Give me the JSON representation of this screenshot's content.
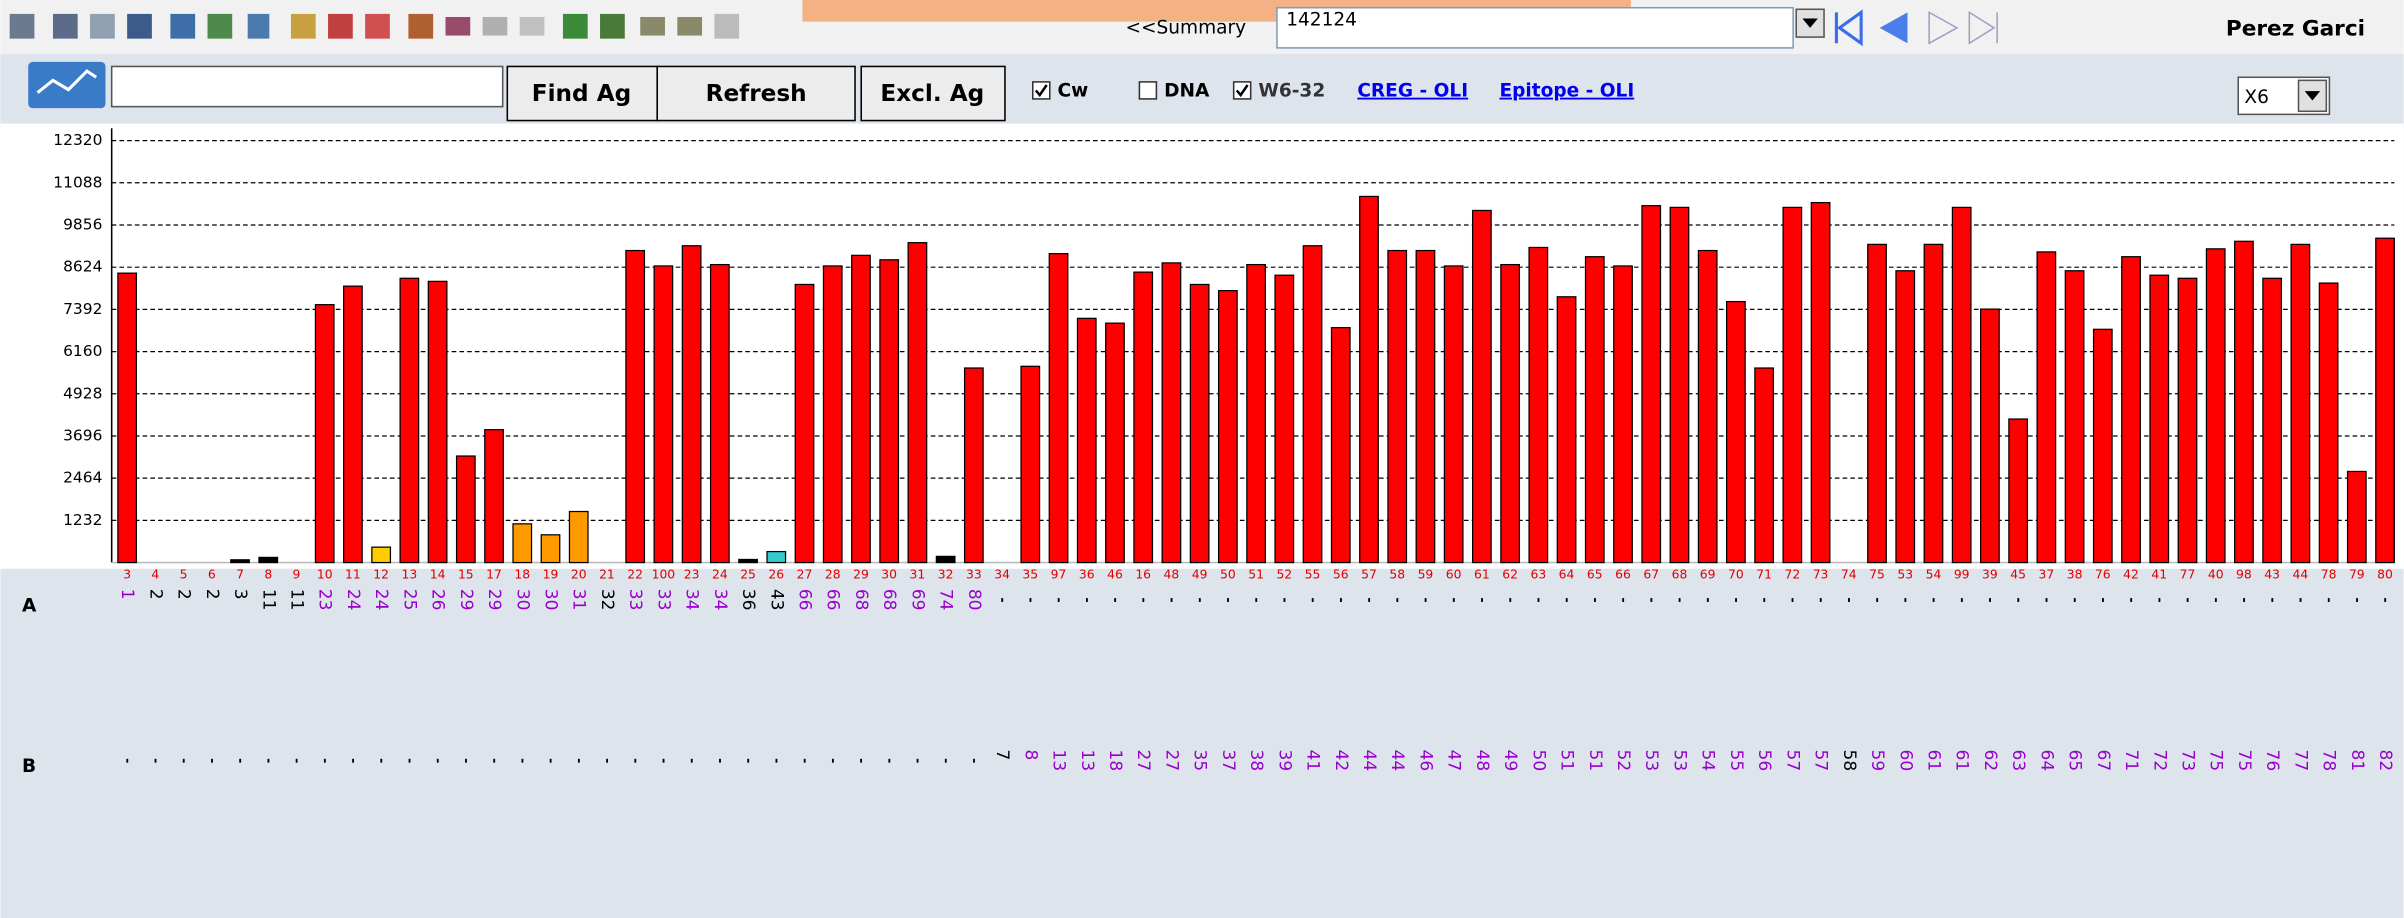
{
  "toolbar": {
    "summary_button": "<<Summary",
    "search_value": "142124",
    "patient_name": "Perez Garci",
    "find_button": "Find Ag",
    "refresh_button": "Refresh",
    "exclude_button": "Excl. Ag",
    "checkboxes": [
      {
        "label": "Cw",
        "checked": true
      },
      {
        "label": "DNA",
        "checked": false
      },
      {
        "label": "W6-32",
        "checked": true
      }
    ],
    "links": [
      "CREG - OLI",
      "Epitope - OLI"
    ],
    "zoom_select": "X6"
  },
  "chart_data": {
    "type": "bar",
    "categories": [
      "3",
      "4",
      "5",
      "6",
      "7",
      "8",
      "9",
      "10",
      "11",
      "12",
      "13",
      "14",
      "15",
      "17",
      "18",
      "19",
      "20",
      "21",
      "22",
      "100",
      "23",
      "24",
      "25",
      "26",
      "27",
      "28",
      "29",
      "30",
      "31",
      "32",
      "33",
      "34",
      "35",
      "97",
      "36",
      "46",
      "16",
      "48",
      "49",
      "50",
      "51",
      "52",
      "55",
      "56",
      "57",
      "58",
      "59",
      "60",
      "61",
      "62",
      "63",
      "64",
      "65",
      "66",
      "67",
      "68",
      "69",
      "70",
      "71",
      "72",
      "73",
      "74",
      "75",
      "53",
      "54",
      "99",
      "39",
      "45",
      "37",
      "38",
      "76",
      "42",
      "41",
      "77",
      "40",
      "98",
      "43",
      "44",
      "78",
      "79",
      "80"
    ],
    "values": [
      8450,
      0,
      0,
      0,
      80,
      150,
      0,
      7530,
      8070,
      450,
      8300,
      8210,
      3110,
      3880,
      1130,
      810,
      1490,
      0,
      9110,
      8660,
      9250,
      8700,
      90,
      320,
      8120,
      8660,
      8970,
      8840,
      9340,
      180,
      5680,
      0,
      5730,
      9020,
      7130,
      6990,
      8480,
      8750,
      8120,
      7940,
      8700,
      8390,
      9250,
      6860,
      10690,
      9110,
      9110,
      8660,
      10280,
      8700,
      9200,
      7760,
      8930,
      8660,
      10420,
      10370,
      9110,
      7620,
      5680,
      10370,
      10510,
      0,
      9290,
      8520,
      9290,
      10370,
      7400,
      4190,
      9070,
      8520,
      6810,
      8930,
      8390,
      8300,
      9160,
      9380,
      8300,
      9290,
      8160,
      2660,
      9470
    ],
    "colors": [
      "#f00",
      "#f00",
      "#f00",
      "#f00",
      "#000",
      "#000",
      "#f00",
      "#f00",
      "#f00",
      "#fc0",
      "#f00",
      "#f00",
      "#f00",
      "#f00",
      "#f90",
      "#f90",
      "#f90",
      "#f00",
      "#f00",
      "#f00",
      "#f00",
      "#f00",
      "#000",
      "#3cc",
      "#f00",
      "#f00",
      "#f00",
      "#f00",
      "#f00",
      "#000",
      "#f00",
      "#f00",
      "#f00",
      "#f00",
      "#f00",
      "#f00",
      "#f00",
      "#f00",
      "#f00",
      "#f00",
      "#f00",
      "#f00",
      "#f00",
      "#f00",
      "#f00",
      "#f00",
      "#f00",
      "#f00",
      "#f00",
      "#f00",
      "#f00",
      "#f00",
      "#f00",
      "#f00",
      "#f00",
      "#f00",
      "#f00",
      "#f00",
      "#f00",
      "#f00",
      "#f00",
      "#f00",
      "#f00",
      "#f00",
      "#f00",
      "#f00",
      "#f00",
      "#f00",
      "#f00",
      "#f00",
      "#f00",
      "#f00",
      "#f00",
      "#f00",
      "#f00",
      "#f00",
      "#f00",
      "#f00",
      "#f00",
      "#f00",
      "#f00"
    ],
    "category_color": "#e00000",
    "ylim": [
      0,
      12680
    ],
    "yticks": [
      1232,
      2464,
      3696,
      4928,
      6160,
      7392,
      8624,
      9856,
      11088,
      12320
    ],
    "grid": true
  },
  "hla_rows": [
    {
      "name": "A",
      "values": [
        1,
        2,
        2,
        2,
        3,
        11,
        11,
        23,
        24,
        24,
        25,
        26,
        29,
        29,
        30,
        30,
        31,
        32,
        33,
        33,
        34,
        34,
        36,
        43,
        66,
        66,
        68,
        68,
        69,
        74,
        80,
        null,
        null,
        null,
        null,
        null,
        null,
        null,
        null,
        null,
        null,
        null,
        null,
        null,
        null,
        null,
        null,
        null,
        null,
        null,
        null,
        null,
        null,
        null,
        null,
        null,
        null,
        null,
        null,
        null,
        null,
        null,
        null,
        null,
        null,
        null,
        null,
        null,
        null,
        null,
        null,
        null,
        null,
        null,
        null,
        null,
        null,
        null,
        null,
        null,
        null
      ],
      "colors": [
        "#90c",
        "#000",
        "#000",
        "#000",
        "#000",
        "#000",
        "#000",
        "#90c",
        "#90c",
        "#90c",
        "#90c",
        "#90c",
        "#90c",
        "#90c",
        "#90c",
        "#90c",
        "#90c",
        "#000",
        "#90c",
        "#90c",
        "#90c",
        "#90c",
        "#000",
        "#000",
        "#90c",
        "#90c",
        "#90c",
        "#90c",
        "#90c",
        "#90c",
        "#90c",
        null,
        null,
        null,
        null,
        null,
        null,
        null,
        null,
        null,
        null,
        null,
        null,
        null,
        null,
        null,
        null,
        null,
        null,
        null,
        null,
        null,
        null,
        null,
        null,
        null,
        null,
        null,
        null,
        null,
        null,
        null,
        null,
        null,
        null,
        null,
        null,
        null,
        null,
        null,
        null,
        null,
        null,
        null,
        null,
        null,
        null,
        null,
        null,
        null,
        null
      ]
    },
    {
      "name": "B",
      "values": [
        null,
        null,
        null,
        null,
        null,
        null,
        null,
        null,
        null,
        null,
        null,
        null,
        null,
        null,
        null,
        null,
        null,
        null,
        null,
        null,
        null,
        null,
        null,
        null,
        null,
        null,
        null,
        null,
        null,
        null,
        null,
        7,
        8,
        13,
        13,
        18,
        27,
        27,
        35,
        37,
        38,
        39,
        41,
        42,
        44,
        44,
        46,
        47,
        48,
        49,
        50,
        51,
        51,
        52,
        53,
        53,
        54,
        55,
        56,
        57,
        57,
        58,
        59,
        60,
        61,
        61,
        62,
        63,
        64,
        65,
        67,
        71,
        72,
        73,
        75,
        75,
        76,
        77,
        78,
        81,
        82
      ],
      "colors": [
        null,
        null,
        null,
        null,
        null,
        null,
        null,
        null,
        null,
        null,
        null,
        null,
        null,
        null,
        null,
        null,
        null,
        null,
        null,
        null,
        null,
        null,
        null,
        null,
        null,
        null,
        null,
        null,
        null,
        null,
        null,
        "#000",
        "#90c",
        "#90c",
        "#90c",
        "#90c",
        "#90c",
        "#90c",
        "#90c",
        "#90c",
        "#90c",
        "#90c",
        "#90c",
        "#90c",
        "#90c",
        "#90c",
        "#90c",
        "#90c",
        "#90c",
        "#90c",
        "#90c",
        "#90c",
        "#90c",
        "#90c",
        "#90c",
        "#90c",
        "#90c",
        "#90c",
        "#90c",
        "#90c",
        "#90c",
        "#000",
        "#90c",
        "#90c",
        "#90c",
        "#90c",
        "#90c",
        "#90c",
        "#90c",
        "#90c",
        "#90c",
        "#90c",
        "#90c",
        "#90c",
        "#90c",
        "#90c",
        "#90c",
        "#90c",
        "#90c",
        "#90c",
        "#90c"
      ]
    }
  ]
}
